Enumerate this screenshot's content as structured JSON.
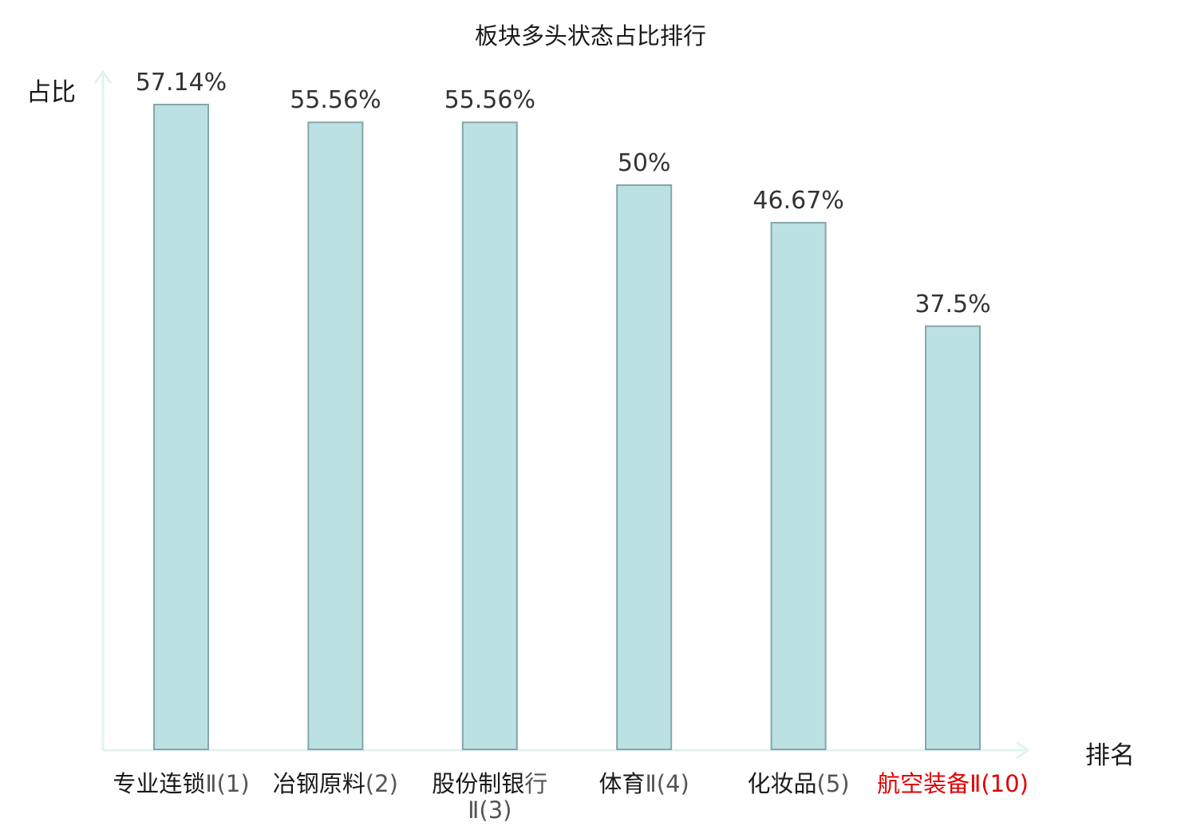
{
  "colors": {
    "bar_fill": "#bce1e3",
    "bar_stroke": "#86a5a8",
    "axis": "#e2f3f1",
    "highlight_text": "#e00000"
  },
  "chart_data": {
    "type": "bar",
    "title": "板块多头状态占比排行",
    "ylabel": "占比",
    "xlabel": "排名",
    "categories": [
      {
        "name": "专业连锁",
        "rank": "Ⅱ(1)",
        "highlight": false
      },
      {
        "name": "冶钢原料",
        "rank": "(2)",
        "highlight": false
      },
      {
        "name": "股份制银",
        "rank": "行Ⅱ(3)",
        "highlight": false
      },
      {
        "name": "体育",
        "rank": "Ⅱ(4)",
        "highlight": false
      },
      {
        "name": "化妆品",
        "rank": "(5)",
        "highlight": false
      },
      {
        "name": "航空装备",
        "rank": "Ⅱ(10)",
        "highlight": true
      }
    ],
    "values": [
      57.14,
      55.56,
      55.56,
      50,
      46.67,
      37.5
    ],
    "value_labels": [
      "57.14%",
      "55.56%",
      "55.56%",
      "50%",
      "46.67%",
      "37.5%"
    ],
    "ylim": [
      0,
      57.14
    ],
    "grid": false,
    "legend": "none"
  }
}
